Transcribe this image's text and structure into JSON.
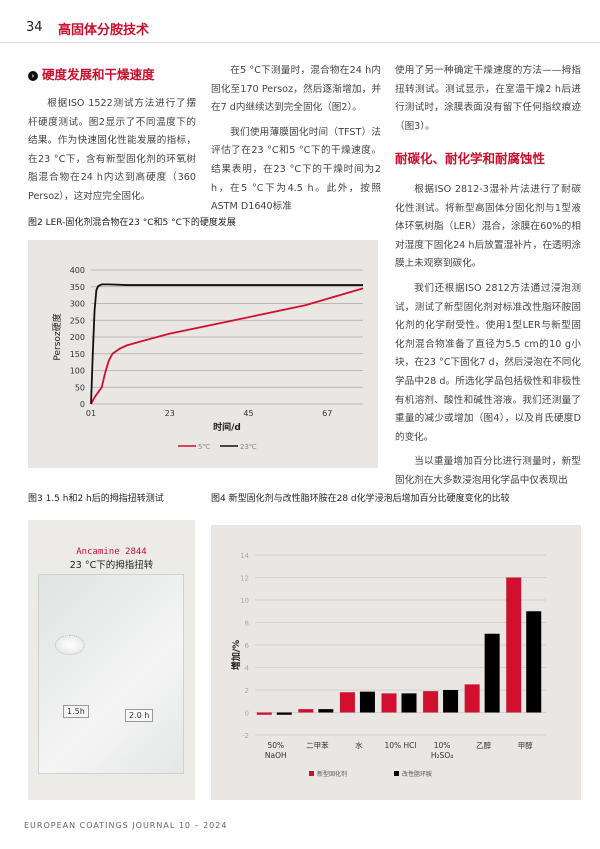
{
  "header": {
    "page": "34",
    "title": "高固体分胺技术"
  },
  "col1": {
    "heading": "硬度发展和干燥速度",
    "paras": [
      "根据ISO 1522测试方法进行了摆杆硬度测试。图2显示了不同温度下的结果。作为快速固化性能发展的指标，在23 °C下，含有新型固化剂的环氧树脂混合物在24 h内达到高硬度（360 Persoz），这对应完全固化。"
    ]
  },
  "col2": {
    "paras": [
      "在5 °C下测量时，混合物在24 h内固化至170 Persoz，然后逐渐增加，并在7 d内继续达到完全固化（图2）。",
      "我们使用薄膜固化时间（TFST）法评估了在23 °C和5 °C下的干燥速度。结果表明，在23 °C下的干燥时间为2 h，在5 °C下为4.5 h。此外，按照ASTM D1640标准"
    ]
  },
  "col3": {
    "para0": "使用了另一种确定干燥速度的方法——拇指扭转测试。测试显示，在室温干燥2 h后进行测试时，涂膜表面没有留下任何指纹痕迹（图3）。",
    "heading": "耐碳化、耐化学和耐腐蚀性",
    "paras": [
      "根据ISO 2812-3湿补片法进行了耐碳化性测试。将新型高固体分固化剂与1型液体环氧树脂（LER）混合，涂膜在60%的相对湿度下固化24 h后放置湿补片，在透明涂膜上未观察到碳化。",
      "我们还根据ISO 2812方法通过浸泡测试，测试了新型固化剂对标准改性脂环胺固化剂的化学耐受性。使用1型LER与新型固化剂混合物准备了直径为5.5 cm的10 g小块，在23 °C下固化7 d，然后浸泡在不同化学品中28 d。所选化学品包括极性和非极性有机溶剂、酸性和碱性溶液。我们还测量了重量的减少或增加（图4），以及肖氏硬度D的变化。",
      "当以重量增加百分比进行测量时，新型固化剂在大多数浸泡用化学品中仅表现出"
    ]
  },
  "fig3": {
    "caption": "图3 1.5 h和2 h后的拇指扭转测试",
    "brand": "Ancamine 2844",
    "subtitle": "23 °C下的拇指扭转",
    "label1": "1.5h",
    "label2": "2.0 h"
  },
  "chart_data": [
    {
      "type": "line",
      "title": "图2 LER-固化剂混合物在23 °C和5 °C下的硬度发展",
      "xlabel": "时间/d",
      "ylabel": "Persoz硬度",
      "xticks": [
        "01",
        "23",
        "45",
        "67"
      ],
      "xtick_values": [
        0,
        22,
        44,
        66
      ],
      "yticks": [
        0,
        50,
        100,
        150,
        200,
        250,
        300,
        350,
        400
      ],
      "ylim": [
        0,
        400
      ],
      "grid": "horizontal",
      "legend": "bottom",
      "colors": {
        "5℃": "#d0102e",
        "23℃": "#111111"
      },
      "series": [
        {
          "name": "5℃",
          "x": [
            0,
            1,
            2,
            3,
            4,
            5,
            6,
            8,
            10,
            15,
            22,
            40,
            60,
            76
          ],
          "y": [
            0,
            20,
            35,
            50,
            95,
            130,
            150,
            165,
            175,
            190,
            210,
            250,
            295,
            345
          ]
        },
        {
          "name": "23℃",
          "x": [
            0,
            0.5,
            1,
            1.5,
            2,
            3,
            5,
            10,
            30,
            76
          ],
          "y": [
            0,
            150,
            280,
            340,
            352,
            357,
            357,
            355,
            355,
            355
          ]
        }
      ]
    },
    {
      "type": "bar",
      "title": "图4 新型固化剂与改性脂环胺在28 d化学浸泡后增加百分比硬度变化的比较",
      "ylabel": "增加/%",
      "categories": [
        "50% NaOH",
        "二甲苯",
        "水",
        "10% HCl",
        "10% H₂SO₄",
        "乙醇",
        "甲醇"
      ],
      "yticks": [
        -2,
        0,
        2,
        4,
        6,
        8,
        10,
        12,
        14
      ],
      "ylim": [
        -2,
        14
      ],
      "grid": "horizontal",
      "legend": "bottom",
      "series": [
        {
          "name": "新型固化剂",
          "color": "#d0102e",
          "values": [
            -0.2,
            0.3,
            1.8,
            1.7,
            1.9,
            2.5,
            12
          ]
        },
        {
          "name": "改性脂环胺",
          "color": "#000000",
          "values": [
            -0.2,
            0.3,
            1.85,
            1.7,
            2.0,
            7,
            9
          ]
        }
      ]
    }
  ],
  "footer": "EUROPEAN COATINGS JOURNAL 10 – 2024"
}
